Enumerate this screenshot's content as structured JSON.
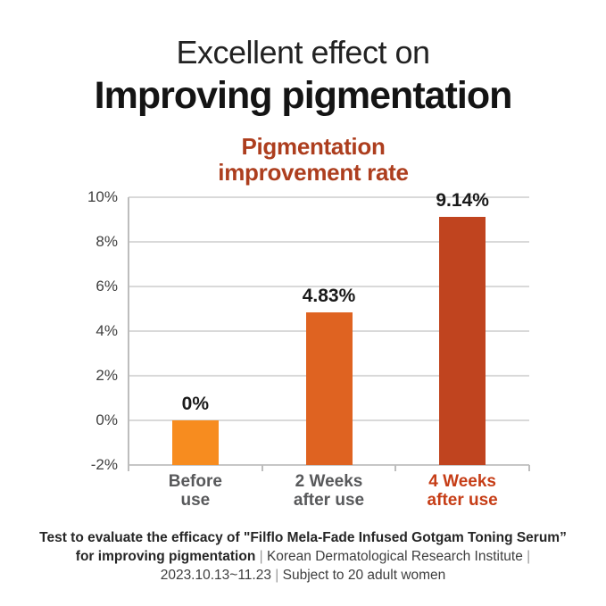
{
  "header": {
    "title_line1": "Excellent effect on",
    "title_line2": "Improving pigmentation"
  },
  "chart_data": {
    "type": "bar",
    "title": "Pigmentation\nimprovement rate",
    "title_color": "#AD3E1E",
    "categories": [
      "Before\nuse",
      "2 Weeks\nafter use",
      "4 Weeks\nafter use"
    ],
    "values": [
      0,
      4.83,
      9.14
    ],
    "value_labels": [
      "0%",
      "4.83%",
      "9.14%"
    ],
    "bar_colors": [
      "#F78C1F",
      "#DF6321",
      "#C0441F"
    ],
    "category_label_colors": [
      "#58595B",
      "#58595B",
      "#C63D16"
    ],
    "xlabel": "",
    "ylabel": "",
    "ylim": [
      -2,
      10
    ],
    "yticks": [
      "10%",
      "8%",
      "6%",
      "4%",
      "2%",
      "0%",
      "-2%"
    ],
    "grid": true,
    "legend": false,
    "baseline": -2
  },
  "footer": {
    "segments": [
      {
        "text": "Test to evaluate the efficacy of \"Filflo Mela-Fade Infused Gotgam Toning Serum”\nfor improving pigmentation",
        "style": "bold"
      },
      {
        "text": " | ",
        "style": "pipe"
      },
      {
        "text": "Korean Dermatological Research Institute",
        "style": "regular"
      },
      {
        "text": " |\n",
        "style": "pipe"
      },
      {
        "text": "2023.10.13~11.23",
        "style": "regular"
      },
      {
        "text": " | ",
        "style": "pipe"
      },
      {
        "text": "Subject to 20 adult women",
        "style": "regular"
      }
    ]
  }
}
